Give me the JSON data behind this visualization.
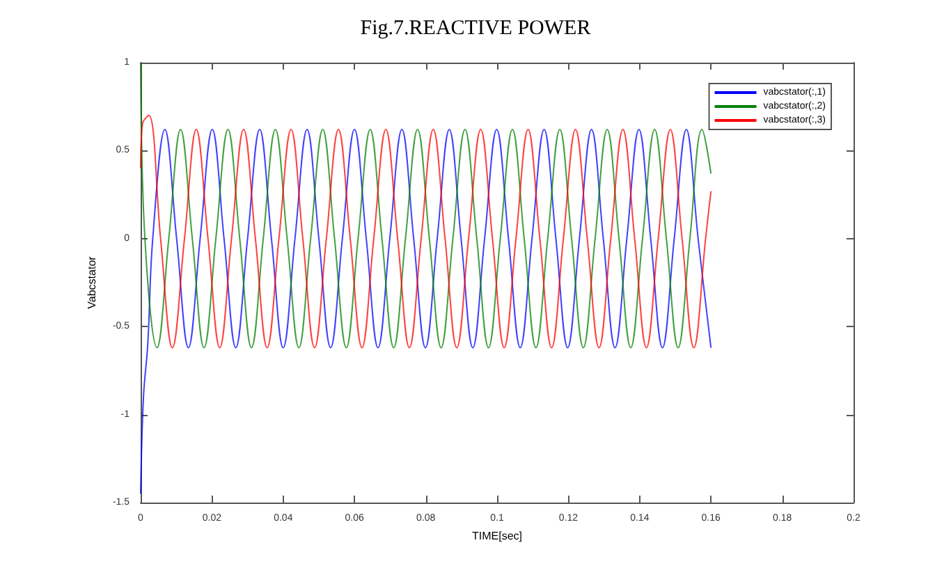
{
  "chart_data": {
    "type": "line",
    "title": "Fig.7.REACTIVE POWER",
    "xlabel": "TIME[sec]",
    "ylabel": "Vabcstator",
    "xlim": [
      0,
      0.2
    ],
    "xticks": [
      0,
      0.02,
      0.04,
      0.06,
      0.08,
      0.1,
      0.12,
      0.14,
      0.16,
      0.18,
      0.2
    ],
    "ylim": [
      -1.5,
      1
    ],
    "yticks": [
      -1.5,
      -1,
      -0.5,
      0,
      0.5,
      1
    ],
    "grid": false,
    "legend": "top right",
    "marker": "none",
    "line_style": "solid",
    "series": [
      {
        "name": "vabcstator(:,1)",
        "color": "#0000ff",
        "x": [
          0,
          0.0008,
          0.002,
          0.0034,
          0.0068,
          0.0101,
          0.0134,
          0.0167,
          0.0201,
          0.0234,
          0.0267,
          0.03,
          0.0334,
          0.0367,
          0.04,
          0.0433,
          0.0467,
          0.05,
          0.0533,
          0.0566,
          0.06,
          0.0633,
          0.0666,
          0.0699,
          0.0733,
          0.0766,
          0.0799,
          0.0832,
          0.0866,
          0.0899,
          0.0932,
          0.0965,
          0.0999,
          0.1032,
          0.1065,
          0.1098,
          0.1132,
          0.1165,
          0.1198,
          0.1231,
          0.1265,
          0.1298,
          0.1331,
          0.1364,
          0.1398,
          0.1431,
          0.1464,
          0.1497,
          0.1531,
          0.1564,
          0.16
        ],
        "values": [
          -1.45,
          -0.9,
          -0.6,
          0,
          0.62,
          0,
          -0.62,
          0,
          0.62,
          0,
          -0.62,
          0,
          0.62,
          0,
          -0.62,
          0,
          0.62,
          0,
          -0.62,
          0,
          0.62,
          0,
          -0.62,
          0,
          0.62,
          0,
          -0.62,
          0,
          0.62,
          0,
          -0.62,
          0,
          0.62,
          0,
          -0.62,
          0,
          0.62,
          0,
          -0.62,
          0,
          0.62,
          0,
          -0.62,
          0,
          0.62,
          0,
          -0.62,
          0,
          0.62,
          0,
          -0.62
        ]
      },
      {
        "name": "vabcstator(:,2)",
        "color": "#008000",
        "x": [
          0,
          0.0012,
          0.0046,
          0.0079,
          0.0112,
          0.0145,
          0.0178,
          0.0211,
          0.0245,
          0.0278,
          0.0311,
          0.0344,
          0.0378,
          0.0411,
          0.0444,
          0.0477,
          0.0511,
          0.0544,
          0.0577,
          0.061,
          0.0644,
          0.0677,
          0.071,
          0.0743,
          0.0777,
          0.081,
          0.0843,
          0.0876,
          0.091,
          0.0943,
          0.0976,
          0.1009,
          0.1043,
          0.1076,
          0.1109,
          0.1142,
          0.1176,
          0.1209,
          0.1242,
          0.1275,
          0.1309,
          0.1342,
          0.1375,
          0.1408,
          0.1442,
          0.1475,
          0.1508,
          0.1541,
          0.1575,
          0.16
        ],
        "values": [
          1,
          0,
          -0.62,
          0,
          0.62,
          0,
          -0.62,
          0,
          0.62,
          0,
          -0.62,
          0,
          0.62,
          0,
          -0.62,
          0,
          0.62,
          0,
          -0.62,
          0,
          0.62,
          0,
          -0.62,
          0,
          0.62,
          0,
          -0.62,
          0,
          0.62,
          0,
          -0.62,
          0,
          0.62,
          0,
          -0.62,
          0,
          0.62,
          0,
          -0.62,
          0,
          0.62,
          0,
          -0.62,
          0,
          0.62,
          0,
          -0.62,
          0,
          0.62,
          0.37
        ]
      },
      {
        "name": "vabcstator(:,3)",
        "color": "#ff0000",
        "x": [
          0,
          0.0005,
          0.0023,
          0.0056,
          0.0089,
          0.0123,
          0.0156,
          0.0189,
          0.0222,
          0.0255,
          0.0289,
          0.0322,
          0.0355,
          0.0388,
          0.0422,
          0.0455,
          0.0488,
          0.0521,
          0.0555,
          0.0588,
          0.0621,
          0.0654,
          0.0688,
          0.0721,
          0.0754,
          0.0787,
          0.0821,
          0.0854,
          0.0887,
          0.092,
          0.0954,
          0.0987,
          0.102,
          0.1053,
          0.1087,
          0.112,
          0.1153,
          0.1186,
          0.122,
          0.1253,
          0.1286,
          0.1319,
          0.1353,
          0.1386,
          0.1419,
          0.1452,
          0.1486,
          0.1519,
          0.1552,
          0.1585,
          0.16
        ],
        "values": [
          0.4,
          0.65,
          0.7,
          0,
          -0.62,
          0,
          0.62,
          0,
          -0.62,
          0,
          0.62,
          0,
          -0.62,
          0,
          0.62,
          0,
          -0.62,
          0,
          0.62,
          0,
          -0.62,
          0,
          0.62,
          0,
          -0.62,
          0,
          0.62,
          0,
          -0.62,
          0,
          0.62,
          0,
          -0.62,
          0,
          0.62,
          0,
          -0.62,
          0,
          0.62,
          0,
          -0.62,
          0,
          0.62,
          0,
          -0.62,
          0,
          0.62,
          0,
          -0.62,
          0,
          0.27
        ]
      }
    ]
  }
}
